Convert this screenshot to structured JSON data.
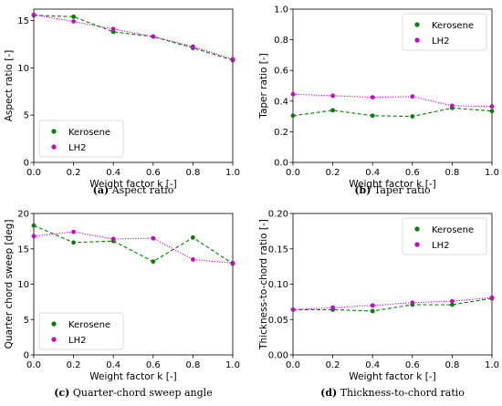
{
  "colors": {
    "kerosene": "#008000",
    "lh2": "#cc00cc"
  },
  "chart_data": [
    {
      "type": "line",
      "caption_letter": "(a)",
      "caption_text": " Aspect ratio",
      "xlabel": "Weight factor k [-]",
      "ylabel": "Aspect ratio [-]",
      "xlim": [
        0,
        1
      ],
      "ylim": [
        0,
        16.2
      ],
      "xticks": [
        "0.0",
        "0.2",
        "0.4",
        "0.6",
        "0.8",
        "1.0"
      ],
      "yticks": [
        "0",
        "5",
        "10",
        "15"
      ],
      "ytick_values": [
        0,
        5,
        10,
        15
      ],
      "legend_position": "lower-left",
      "x": [
        0.0,
        0.2,
        0.4,
        0.6,
        0.8,
        1.0
      ],
      "series": [
        {
          "name": "Kerosene",
          "color_key": "kerosene",
          "style": "dashed",
          "values": [
            15.55,
            15.4,
            13.8,
            13.3,
            12.1,
            10.8
          ]
        },
        {
          "name": "LH2",
          "color_key": "lh2",
          "style": "dotted",
          "values": [
            15.6,
            14.9,
            14.1,
            13.3,
            12.25,
            10.9
          ]
        }
      ]
    },
    {
      "type": "line",
      "caption_letter": "(b)",
      "caption_text": " Taper ratio",
      "xlabel": "Weight factor k [-]",
      "ylabel": "Taper ratio [-]",
      "xlim": [
        0,
        1
      ],
      "ylim": [
        0,
        1.0
      ],
      "xticks": [
        "0.0",
        "0.2",
        "0.4",
        "0.6",
        "0.8",
        "1.0"
      ],
      "yticks": [
        "0.0",
        "0.2",
        "0.4",
        "0.6",
        "0.8",
        "1.0"
      ],
      "ytick_values": [
        0,
        0.2,
        0.4,
        0.6,
        0.8,
        1.0
      ],
      "legend_position": "upper-right",
      "x": [
        0.0,
        0.2,
        0.4,
        0.6,
        0.8,
        1.0
      ],
      "series": [
        {
          "name": "Kerosene",
          "color_key": "kerosene",
          "style": "dashed",
          "values": [
            0.305,
            0.34,
            0.305,
            0.3,
            0.355,
            0.335
          ]
        },
        {
          "name": "LH2",
          "color_key": "lh2",
          "style": "dotted",
          "values": [
            0.445,
            0.435,
            0.425,
            0.43,
            0.37,
            0.365
          ]
        }
      ]
    },
    {
      "type": "line",
      "caption_letter": "(c)",
      "caption_text": " Quarter-chord sweep angle",
      "xlabel": "Weight factor k [-]",
      "ylabel": "Quarter chord sweep [deg]",
      "xlim": [
        0,
        1
      ],
      "ylim": [
        0,
        20
      ],
      "xticks": [
        "0.0",
        "0.2",
        "0.4",
        "0.6",
        "0.8",
        "1.0"
      ],
      "yticks": [
        "0",
        "5",
        "10",
        "15",
        "20"
      ],
      "ytick_values": [
        0,
        5,
        10,
        15,
        20
      ],
      "legend_position": "lower-left",
      "x": [
        0.0,
        0.2,
        0.4,
        0.6,
        0.8,
        1.0
      ],
      "series": [
        {
          "name": "Kerosene",
          "color_key": "kerosene",
          "style": "dashed",
          "values": [
            18.3,
            15.9,
            16.1,
            13.2,
            16.6,
            12.9
          ]
        },
        {
          "name": "LH2",
          "color_key": "lh2",
          "style": "dotted",
          "values": [
            16.8,
            17.4,
            16.4,
            16.5,
            13.5,
            13.0
          ]
        }
      ]
    },
    {
      "type": "line",
      "caption_letter": "(d)",
      "caption_text": " Thickness-to-chord ratio",
      "xlabel": "Weight factor k [-]",
      "ylabel": "Thickness-to-chord ratio [-]",
      "xlim": [
        0,
        1
      ],
      "ylim": [
        0,
        0.2
      ],
      "xticks": [
        "0.0",
        "0.2",
        "0.4",
        "0.6",
        "0.8",
        "1.0"
      ],
      "yticks": [
        "0.00",
        "0.05",
        "0.10",
        "0.15",
        "0.20"
      ],
      "ytick_values": [
        0,
        0.05,
        0.1,
        0.15,
        0.2
      ],
      "legend_position": "upper-right",
      "x": [
        0.0,
        0.2,
        0.4,
        0.6,
        0.8,
        1.0
      ],
      "series": [
        {
          "name": "Kerosene",
          "color_key": "kerosene",
          "style": "dashed",
          "values": [
            0.064,
            0.064,
            0.062,
            0.071,
            0.071,
            0.08
          ]
        },
        {
          "name": "LH2",
          "color_key": "lh2",
          "style": "dotted",
          "values": [
            0.064,
            0.067,
            0.07,
            0.074,
            0.076,
            0.081
          ]
        }
      ]
    }
  ]
}
